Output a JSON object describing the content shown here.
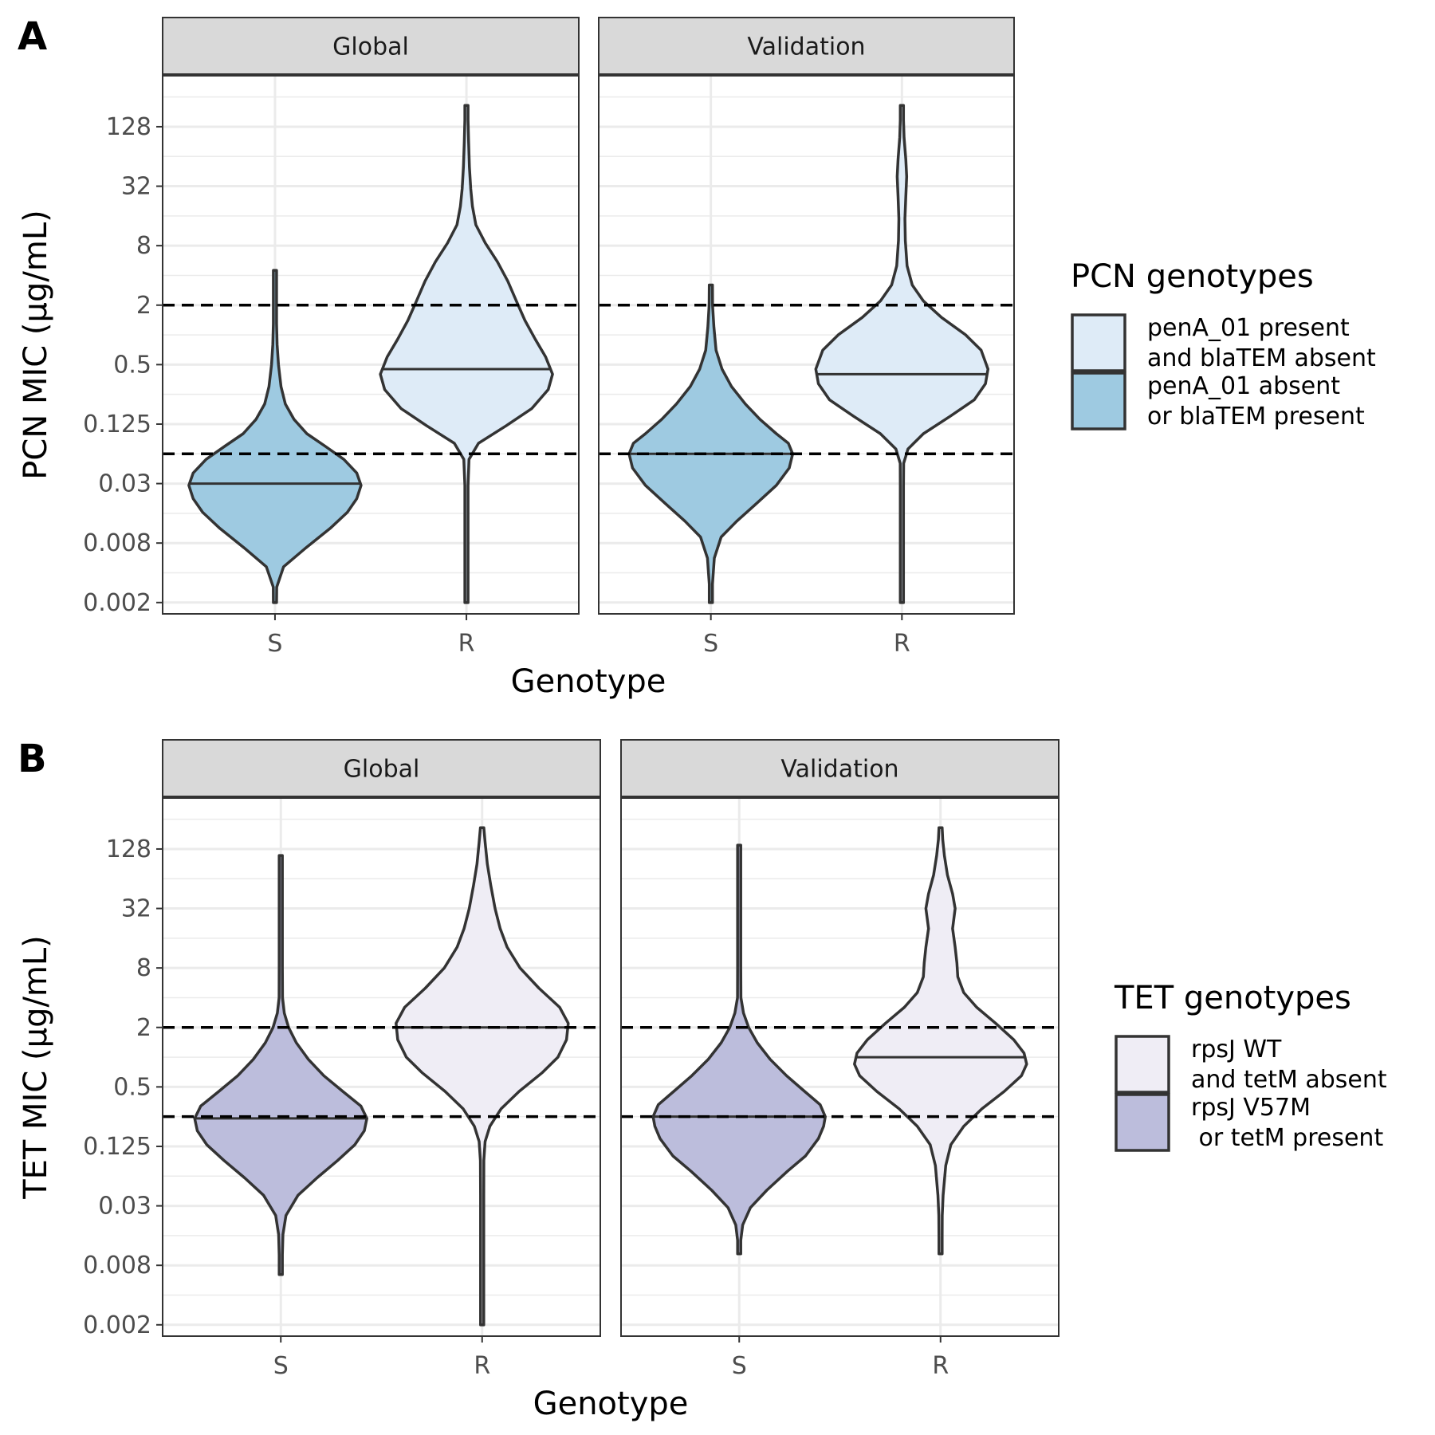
{
  "chart_data": [
    {
      "type": "violin",
      "panel_tag": "A",
      "ylabel": "PCN MIC (µg/mL)",
      "xlabel": "Genotype",
      "y_scale": "log2",
      "y_ticks": [
        "0.002",
        "0.008",
        "0.03",
        "0.125",
        "0.5",
        "2",
        "8",
        "32",
        "128"
      ],
      "y_tick_values": [
        0.001953125,
        0.0078125,
        0.03125,
        0.125,
        0.5,
        2,
        8,
        32,
        128
      ],
      "ylim": [
        0.0015,
        420
      ],
      "reference_lines": [
        0.0625,
        2
      ],
      "facets": [
        "Global",
        "Validation"
      ],
      "categories": [
        "S",
        "R"
      ],
      "legend": {
        "title": "PCN genotypes",
        "entries": [
          {
            "lines": [
              "penA_01 present",
              "and blaTEM absent"
            ],
            "color": "#deebf7"
          },
          {
            "lines": [
              "penA_01 absent",
              "or blaTEM present"
            ],
            "color": "#9ecae1"
          }
        ]
      },
      "violins": [
        {
          "facet": "Global",
          "category": "S",
          "fill": "#9ecae1",
          "median": 0.03125,
          "profile": [
            [
              0.00195,
              0.003
            ],
            [
              0.0028,
              0.02
            ],
            [
              0.0045,
              0.1
            ],
            [
              0.007,
              0.36
            ],
            [
              0.011,
              0.64
            ],
            [
              0.016,
              0.84
            ],
            [
              0.022,
              0.95
            ],
            [
              0.03,
              1.0
            ],
            [
              0.04,
              0.95
            ],
            [
              0.055,
              0.8
            ],
            [
              0.075,
              0.58
            ],
            [
              0.1,
              0.37
            ],
            [
              0.14,
              0.22
            ],
            [
              0.2,
              0.12
            ],
            [
              0.3,
              0.07
            ],
            [
              0.5,
              0.04
            ],
            [
              0.8,
              0.025
            ],
            [
              1.3,
              0.016
            ],
            [
              2.5,
              0.01
            ],
            [
              4.5,
              0.003
            ]
          ]
        },
        {
          "facet": "Global",
          "category": "R",
          "fill": "#deebf7",
          "median": 0.45,
          "profile": [
            [
              0.00195,
              0.003
            ],
            [
              0.01,
              0.005
            ],
            [
              0.03,
              0.012
            ],
            [
              0.055,
              0.03
            ],
            [
              0.08,
              0.14
            ],
            [
              0.12,
              0.46
            ],
            [
              0.18,
              0.76
            ],
            [
              0.28,
              0.95
            ],
            [
              0.4,
              1.0
            ],
            [
              0.6,
              0.92
            ],
            [
              0.9,
              0.8
            ],
            [
              1.4,
              0.68
            ],
            [
              2.2,
              0.58
            ],
            [
              3.5,
              0.48
            ],
            [
              5.5,
              0.36
            ],
            [
              8.5,
              0.22
            ],
            [
              13,
              0.11
            ],
            [
              20,
              0.07
            ],
            [
              30,
              0.05
            ],
            [
              50,
              0.035
            ],
            [
              90,
              0.025
            ],
            [
              150,
              0.018
            ],
            [
              210,
              0.007
            ]
          ]
        },
        {
          "facet": "Validation",
          "category": "S",
          "fill": "#9ecae1",
          "median": 0.0625,
          "profile": [
            [
              0.00195,
              0.003
            ],
            [
              0.003,
              0.01
            ],
            [
              0.0055,
              0.04
            ],
            [
              0.009,
              0.12
            ],
            [
              0.013,
              0.3
            ],
            [
              0.02,
              0.54
            ],
            [
              0.03,
              0.76
            ],
            [
              0.045,
              0.91
            ],
            [
              0.0625,
              0.95
            ],
            [
              0.08,
              0.9
            ],
            [
              0.1,
              0.76
            ],
            [
              0.14,
              0.57
            ],
            [
              0.2,
              0.4
            ],
            [
              0.3,
              0.24
            ],
            [
              0.45,
              0.13
            ],
            [
              0.7,
              0.06
            ],
            [
              1.2,
              0.035
            ],
            [
              2.0,
              0.02
            ],
            [
              3.2,
              0.01
            ]
          ]
        },
        {
          "facet": "Validation",
          "category": "R",
          "fill": "#deebf7",
          "median": 0.4,
          "profile": [
            [
              0.00195,
              0.003
            ],
            [
              0.01,
              0.005
            ],
            [
              0.03,
              0.01
            ],
            [
              0.05,
              0.02
            ],
            [
              0.07,
              0.07
            ],
            [
              0.1,
              0.25
            ],
            [
              0.15,
              0.56
            ],
            [
              0.22,
              0.84
            ],
            [
              0.32,
              0.97
            ],
            [
              0.45,
              1.0
            ],
            [
              0.7,
              0.92
            ],
            [
              1.0,
              0.74
            ],
            [
              1.5,
              0.46
            ],
            [
              2.2,
              0.25
            ],
            [
              3.2,
              0.12
            ],
            [
              5,
              0.06
            ],
            [
              9,
              0.04
            ],
            [
              15,
              0.035
            ],
            [
              25,
              0.045
            ],
            [
              40,
              0.055
            ],
            [
              60,
              0.045
            ],
            [
              100,
              0.025
            ],
            [
              150,
              0.015
            ],
            [
              210,
              0.007
            ]
          ]
        }
      ]
    },
    {
      "type": "violin",
      "panel_tag": "B",
      "ylabel": "TET MIC (µg/mL)",
      "xlabel": "Genotype",
      "y_scale": "log2",
      "y_ticks": [
        "0.002",
        "0.008",
        "0.03",
        "0.125",
        "0.5",
        "2",
        "8",
        "32",
        "128"
      ],
      "y_tick_values": [
        0.001953125,
        0.0078125,
        0.03125,
        0.125,
        0.5,
        2,
        8,
        32,
        128
      ],
      "ylim": [
        0.0015,
        420
      ],
      "reference_lines": [
        0.25,
        2
      ],
      "facets": [
        "Global",
        "Validation"
      ],
      "categories": [
        "S",
        "R"
      ],
      "legend": {
        "title": "TET genotypes",
        "entries": [
          {
            "lines": [
              "rpsJ WT",
              "and tetM absent"
            ],
            "color": "#efedf5"
          },
          {
            "lines": [
              "rpsJ V57M",
              " or tetM present"
            ],
            "color": "#bcbddc"
          }
        ]
      },
      "violins": [
        {
          "facet": "Global",
          "category": "S",
          "fill": "#bcbddc",
          "median": 0.24,
          "profile": [
            [
              0.0063,
              0.003
            ],
            [
              0.01,
              0.012
            ],
            [
              0.016,
              0.025
            ],
            [
              0.025,
              0.06
            ],
            [
              0.04,
              0.2
            ],
            [
              0.06,
              0.42
            ],
            [
              0.09,
              0.66
            ],
            [
              0.13,
              0.86
            ],
            [
              0.18,
              0.97
            ],
            [
              0.24,
              1.0
            ],
            [
              0.32,
              0.93
            ],
            [
              0.45,
              0.72
            ],
            [
              0.65,
              0.5
            ],
            [
              0.95,
              0.32
            ],
            [
              1.4,
              0.18
            ],
            [
              2,
              0.09
            ],
            [
              2.8,
              0.04
            ],
            [
              4,
              0.02
            ],
            [
              8,
              0.013
            ],
            [
              20,
              0.01
            ],
            [
              50,
              0.008
            ],
            [
              100,
              0.007
            ],
            [
              110,
              0.005
            ]
          ]
        },
        {
          "facet": "Global",
          "category": "R",
          "fill": "#efedf5",
          "median": 2,
          "profile": [
            [
              0.00195,
              0.004
            ],
            [
              0.01,
              0.008
            ],
            [
              0.04,
              0.013
            ],
            [
              0.09,
              0.02
            ],
            [
              0.14,
              0.035
            ],
            [
              0.2,
              0.09
            ],
            [
              0.3,
              0.22
            ],
            [
              0.45,
              0.43
            ],
            [
              0.7,
              0.7
            ],
            [
              1.0,
              0.88
            ],
            [
              1.5,
              0.98
            ],
            [
              2.2,
              1.0
            ],
            [
              3.2,
              0.9
            ],
            [
              5,
              0.66
            ],
            [
              8,
              0.44
            ],
            [
              13,
              0.29
            ],
            [
              20,
              0.21
            ],
            [
              32,
              0.15
            ],
            [
              55,
              0.1
            ],
            [
              90,
              0.06
            ],
            [
              150,
              0.035
            ],
            [
              210,
              0.02
            ]
          ]
        },
        {
          "facet": "Validation",
          "category": "S",
          "fill": "#bcbddc",
          "median": 0.25,
          "profile": [
            [
              0.0102,
              0.003
            ],
            [
              0.014,
              0.012
            ],
            [
              0.02,
              0.04
            ],
            [
              0.03,
              0.13
            ],
            [
              0.045,
              0.32
            ],
            [
              0.07,
              0.56
            ],
            [
              0.1,
              0.77
            ],
            [
              0.15,
              0.92
            ],
            [
              0.2,
              0.98
            ],
            [
              0.25,
              1.0
            ],
            [
              0.33,
              0.94
            ],
            [
              0.45,
              0.76
            ],
            [
              0.65,
              0.55
            ],
            [
              0.95,
              0.36
            ],
            [
              1.4,
              0.21
            ],
            [
              2,
              0.11
            ],
            [
              2.8,
              0.05
            ],
            [
              4,
              0.02
            ],
            [
              8,
              0.013
            ],
            [
              20,
              0.01
            ],
            [
              60,
              0.008
            ],
            [
              140,
              0.005
            ]
          ]
        },
        {
          "facet": "Validation",
          "category": "R",
          "fill": "#efedf5",
          "median": 1,
          "profile": [
            [
              0.0102,
              0.003
            ],
            [
              0.015,
              0.012
            ],
            [
              0.025,
              0.02
            ],
            [
              0.04,
              0.03
            ],
            [
              0.08,
              0.06
            ],
            [
              0.13,
              0.12
            ],
            [
              0.2,
              0.27
            ],
            [
              0.3,
              0.48
            ],
            [
              0.45,
              0.74
            ],
            [
              0.65,
              0.94
            ],
            [
              0.85,
              1.0
            ],
            [
              1.1,
              0.97
            ],
            [
              1.5,
              0.85
            ],
            [
              2.2,
              0.64
            ],
            [
              3.2,
              0.42
            ],
            [
              4.5,
              0.27
            ],
            [
              6.5,
              0.2
            ],
            [
              9,
              0.19
            ],
            [
              13,
              0.17
            ],
            [
              20,
              0.14
            ],
            [
              32,
              0.17
            ],
            [
              45,
              0.14
            ],
            [
              70,
              0.08
            ],
            [
              110,
              0.045
            ],
            [
              160,
              0.025
            ],
            [
              210,
              0.01
            ]
          ]
        }
      ]
    }
  ]
}
